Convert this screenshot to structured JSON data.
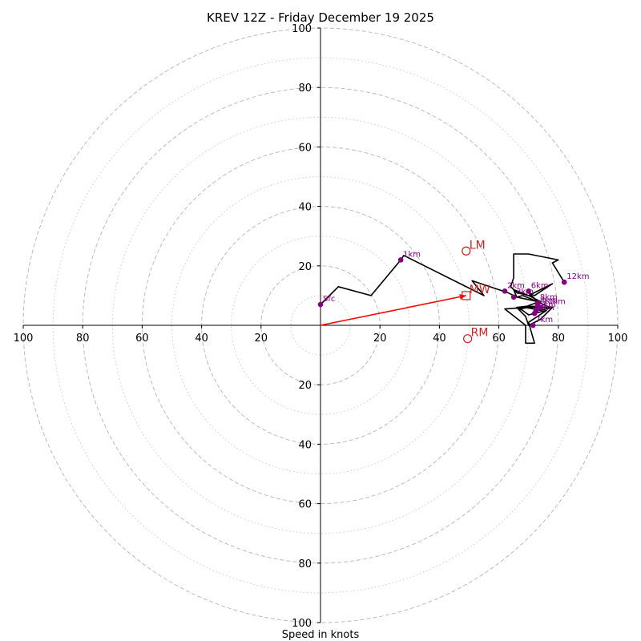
{
  "chart_data": {
    "type": "hodograph",
    "title": "KREV 12Z - Friday December 19 2025",
    "xlabel": "Speed in knots",
    "units": "knots",
    "max_speed": 100,
    "major_rings": [
      20,
      40,
      60,
      80,
      100
    ],
    "minor_rings": [
      10,
      30,
      50,
      70,
      90
    ],
    "axis_ticks": [
      20,
      40,
      60,
      80,
      100
    ],
    "hodograph_trace": [
      [
        0,
        7
      ],
      [
        6,
        13
      ],
      [
        17,
        10
      ],
      [
        27,
        22
      ],
      [
        28,
        23.5
      ],
      [
        55,
        10
      ],
      [
        51,
        15
      ],
      [
        63,
        11
      ],
      [
        66,
        9.5
      ],
      [
        65,
        12
      ],
      [
        70,
        10
      ],
      [
        78,
        14
      ],
      [
        72,
        10
      ],
      [
        70,
        11
      ],
      [
        73,
        8
      ],
      [
        68,
        10
      ],
      [
        66,
        9.5
      ],
      [
        73,
        8
      ],
      [
        77,
        6
      ],
      [
        71,
        6
      ],
      [
        66,
        6
      ],
      [
        69,
        3
      ],
      [
        70,
        0
      ],
      [
        74,
        2
      ],
      [
        78,
        6
      ],
      [
        74,
        5
      ],
      [
        69,
        6
      ],
      [
        62,
        5.5
      ],
      [
        69,
        0
      ],
      [
        69,
        -6
      ],
      [
        72,
        -6
      ],
      [
        70,
        1
      ],
      [
        73,
        3
      ],
      [
        76,
        5
      ],
      [
        72,
        4
      ],
      [
        70,
        3.5
      ],
      [
        68,
        5
      ],
      [
        66,
        6
      ],
      [
        70,
        6.5
      ],
      [
        76,
        6
      ],
      [
        74,
        6
      ],
      [
        70,
        6
      ],
      [
        67,
        5.5
      ],
      [
        71,
        7
      ],
      [
        74,
        8
      ],
      [
        70,
        10
      ],
      [
        66,
        11
      ],
      [
        64,
        13
      ],
      [
        65,
        16
      ],
      [
        65,
        24
      ],
      [
        70,
        24
      ],
      [
        80,
        22
      ],
      [
        78,
        21
      ],
      [
        82,
        14.5
      ]
    ],
    "height_points": [
      {
        "label": "Sfc",
        "u": 0,
        "v": 7,
        "color": "#800080"
      },
      {
        "label": "1km",
        "u": 27,
        "v": 22,
        "color": "#800080"
      },
      {
        "label": "2km",
        "u": 62,
        "v": 11.5,
        "color": "#800080"
      },
      {
        "label": "3km",
        "u": 65,
        "v": 9.5,
        "color": "#800080"
      },
      {
        "label": "4km",
        "u": 73,
        "v": 6.5,
        "color": "#800080"
      },
      {
        "label": "5km",
        "u": 72.5,
        "v": 5,
        "color": "#800080"
      },
      {
        "label": "6km",
        "u": 70,
        "v": 11.5,
        "color": "#800080"
      },
      {
        "label": "7km",
        "u": 71.5,
        "v": 0,
        "color": "#800080"
      },
      {
        "label": "8km",
        "u": 73,
        "v": 7.5,
        "color": "#800080"
      },
      {
        "label": "9km",
        "u": 72,
        "v": 4,
        "color": "#800080"
      },
      {
        "label": "10km",
        "u": 74,
        "v": 6,
        "color": "#800080"
      },
      {
        "label": "12km",
        "u": 82,
        "v": 14.5,
        "color": "#800080"
      }
    ],
    "storm_motion": [
      {
        "label": "LM",
        "u": 49,
        "v": 25,
        "marker": "circle",
        "color": "#cc2222"
      },
      {
        "label": "MW",
        "u": 49,
        "v": 10,
        "marker": "square",
        "color": "#cc2222"
      },
      {
        "label": "RM",
        "u": 49.5,
        "v": -4.5,
        "marker": "circle",
        "color": "#cc2222"
      }
    ],
    "shear_vector": {
      "u": 49,
      "v": 10,
      "color": "#ff0000"
    },
    "colors": {
      "trace": "#000000",
      "ring_major": "#bbbbbb",
      "ring_minor": "#cccccc",
      "axis": "#000000"
    }
  }
}
